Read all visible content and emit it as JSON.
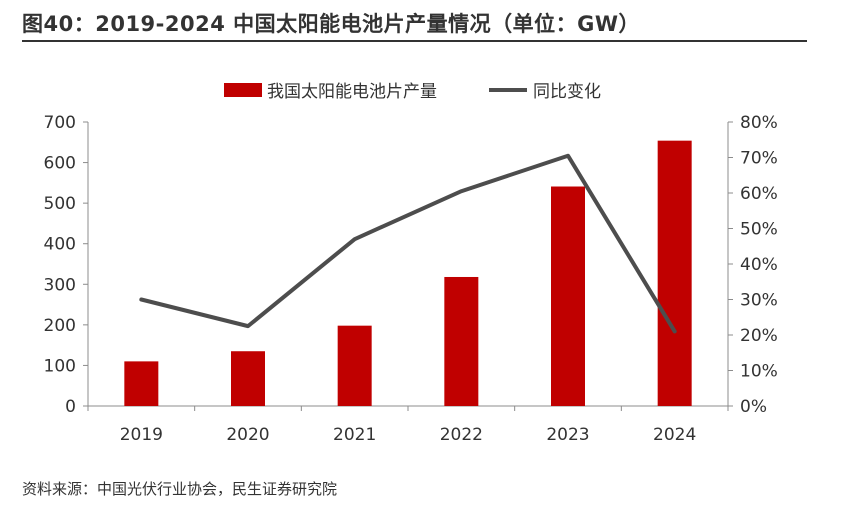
{
  "header": {
    "title": "图40：2019-2024 中国太阳能电池片产量情况（单位：GW）"
  },
  "footer": {
    "source": "资料来源：中国光伏行业协会，民生证券研究院"
  },
  "chart_data": {
    "type": "bar",
    "categories": [
      "2019",
      "2020",
      "2021",
      "2022",
      "2023",
      "2024"
    ],
    "series": [
      {
        "name": "我国太阳能电池片产量",
        "type": "bar",
        "axis": "left",
        "color": "#c00000",
        "values": [
          110,
          135,
          198,
          318,
          541,
          654
        ]
      },
      {
        "name": "同比变化",
        "type": "line",
        "axis": "right",
        "color": "#4d4d4d",
        "values": [
          30,
          22.5,
          47,
          60.5,
          70.5,
          21
        ]
      }
    ],
    "ylim": [
      0,
      700
    ],
    "yticks": [
      "0",
      "100",
      "200",
      "300",
      "400",
      "500",
      "600",
      "700"
    ],
    "y2lim": [
      0,
      80
    ],
    "y2ticks": [
      "0%",
      "10%",
      "20%",
      "30%",
      "40%",
      "50%",
      "60%",
      "70%",
      "80%"
    ],
    "legend": "top-center",
    "grid": false
  }
}
